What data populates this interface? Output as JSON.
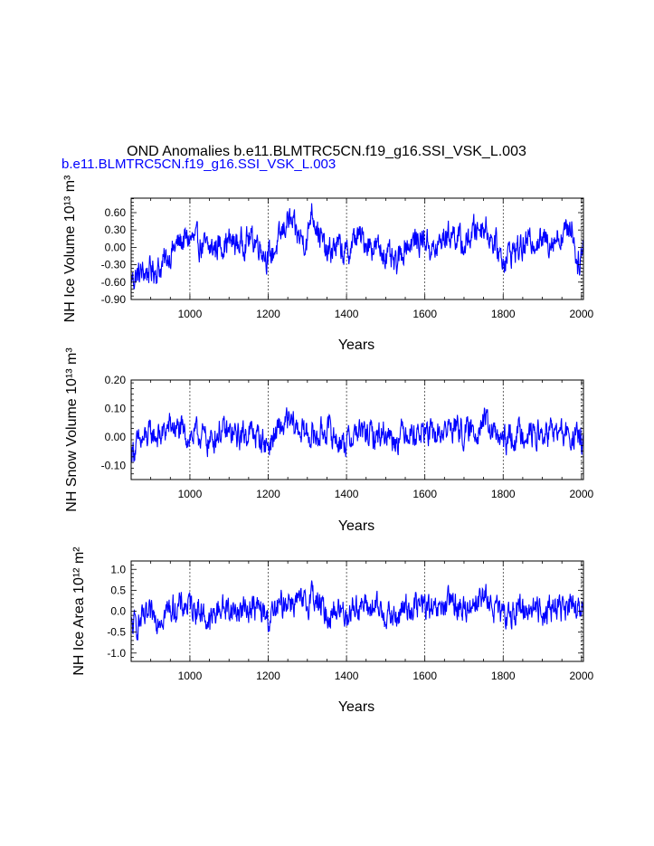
{
  "figure": {
    "title": "OND Anomalies b.e11.BLMTRC5CN.f19_g16.SSI_VSK_L.003",
    "subtitle": "b.e11.BLMTRC5CN.f19_g16.SSI_VSK_L.003",
    "subtitle_color": "#0000ff",
    "line_color": "#0000ff"
  },
  "chart_data": [
    {
      "type": "line",
      "xlabel": "Years",
      "ylabel": "NH Ice Volume 10¹³ m³",
      "xlim": [
        850,
        2005
      ],
      "ylim": [
        -0.9,
        0.85
      ],
      "xticks": [
        1000,
        1200,
        1400,
        1600,
        1800,
        2000
      ],
      "yticks": [
        -0.9,
        -0.6,
        -0.3,
        0.0,
        0.3,
        0.6
      ],
      "ytick_labels": [
        "-0.90",
        "-0.60",
        "-0.30",
        "0.00",
        "0.30",
        "0.60"
      ],
      "grid": "vertical dashed lines at x ticks",
      "series": [
        {
          "x": [
            850,
            875,
            900,
            925,
            950,
            975,
            1000,
            1025,
            1050,
            1075,
            1100,
            1125,
            1150,
            1175,
            1200,
            1225,
            1250,
            1275,
            1300,
            1310,
            1325,
            1350,
            1375,
            1400,
            1425,
            1450,
            1475,
            1500,
            1525,
            1550,
            1575,
            1600,
            1625,
            1650,
            1675,
            1700,
            1725,
            1750,
            1775,
            1800,
            1825,
            1850,
            1875,
            1900,
            1925,
            1950,
            1975,
            1990,
            2005
          ],
          "values": [
            -0.55,
            -0.45,
            -0.4,
            -0.35,
            -0.1,
            0.1,
            0.15,
            0.05,
            -0.05,
            0.05,
            0.1,
            0.05,
            0.15,
            0.1,
            -0.2,
            0.05,
            0.5,
            0.2,
            0.1,
            0.7,
            0.35,
            -0.15,
            0.05,
            -0.15,
            0.2,
            0.1,
            0.0,
            -0.1,
            -0.35,
            0.05,
            0.1,
            0.15,
            -0.1,
            0.2,
            0.25,
            0.0,
            0.3,
            0.4,
            0.1,
            -0.2,
            -0.05,
            0.0,
            0.15,
            0.1,
            0.15,
            0.2,
            0.4,
            -0.3,
            0.0
          ]
        }
      ]
    },
    {
      "type": "line",
      "xlabel": "Years",
      "ylabel": "NH Snow Volume 10¹³ m³",
      "xlim": [
        850,
        2005
      ],
      "ylim": [
        -0.15,
        0.2
      ],
      "xticks": [
        1000,
        1200,
        1400,
        1600,
        1800,
        2000
      ],
      "yticks": [
        -0.1,
        0.0,
        0.1,
        0.2
      ],
      "ytick_labels": [
        "-0.10",
        "0.00",
        "0.10",
        "0.20"
      ],
      "grid": "vertical dashed lines at x ticks",
      "series": [
        {
          "x": [
            850,
            875,
            900,
            925,
            950,
            975,
            1000,
            1025,
            1050,
            1075,
            1100,
            1125,
            1150,
            1175,
            1200,
            1225,
            1250,
            1275,
            1300,
            1325,
            1350,
            1375,
            1400,
            1425,
            1450,
            1475,
            1500,
            1525,
            1550,
            1575,
            1600,
            1625,
            1650,
            1675,
            1700,
            1725,
            1750,
            1775,
            1800,
            1825,
            1850,
            1875,
            1900,
            1925,
            1950,
            1975,
            2005
          ],
          "values": [
            -0.05,
            -0.02,
            0.01,
            0.0,
            0.04,
            0.02,
            0.0,
            0.01,
            -0.02,
            0.02,
            0.01,
            0.0,
            0.02,
            0.0,
            -0.03,
            0.02,
            0.05,
            0.03,
            0.01,
            0.0,
            0.03,
            -0.01,
            -0.02,
            0.02,
            0.01,
            0.0,
            0.02,
            -0.01,
            0.03,
            0.01,
            0.02,
            0.0,
            0.02,
            0.04,
            0.01,
            0.02,
            0.06,
            0.01,
            -0.02,
            0.0,
            0.02,
            0.01,
            0.0,
            0.02,
            0.01,
            0.0,
            -0.01
          ]
        }
      ]
    },
    {
      "type": "line",
      "xlabel": "Years",
      "ylabel": "NH Ice Area 10¹² m²",
      "xlim": [
        850,
        2005
      ],
      "ylim": [
        -1.2,
        1.2
      ],
      "xticks": [
        1000,
        1200,
        1400,
        1600,
        1800,
        2000
      ],
      "yticks": [
        -1.0,
        -0.5,
        0.0,
        0.5,
        1.0
      ],
      "ytick_labels": [
        "-1.0",
        "-0.5",
        "0.0",
        "0.5",
        "1.0"
      ],
      "grid": "vertical dashed lines at x ticks",
      "series": [
        {
          "x": [
            850,
            875,
            900,
            925,
            950,
            975,
            1000,
            1025,
            1050,
            1075,
            1100,
            1125,
            1150,
            1175,
            1200,
            1225,
            1250,
            1275,
            1300,
            1310,
            1325,
            1350,
            1375,
            1400,
            1425,
            1450,
            1475,
            1500,
            1525,
            1550,
            1575,
            1600,
            1625,
            1650,
            1675,
            1700,
            1725,
            1750,
            1775,
            1800,
            1825,
            1850,
            1875,
            1900,
            1925,
            1950,
            1975,
            2005
          ],
          "values": [
            -0.4,
            -0.25,
            -0.15,
            -0.1,
            0.05,
            0.1,
            0.15,
            0.05,
            -0.3,
            0.1,
            0.05,
            0.0,
            0.1,
            0.05,
            -0.2,
            0.05,
            0.3,
            0.2,
            0.1,
            0.5,
            0.2,
            -0.1,
            0.05,
            -0.05,
            0.15,
            0.1,
            0.05,
            -0.05,
            -0.2,
            0.1,
            0.1,
            0.15,
            -0.1,
            0.15,
            0.2,
            0.0,
            0.25,
            0.35,
            0.1,
            -0.15,
            0.0,
            0.05,
            0.1,
            0.0,
            0.1,
            0.1,
            0.05,
            -0.05
          ]
        }
      ]
    }
  ]
}
